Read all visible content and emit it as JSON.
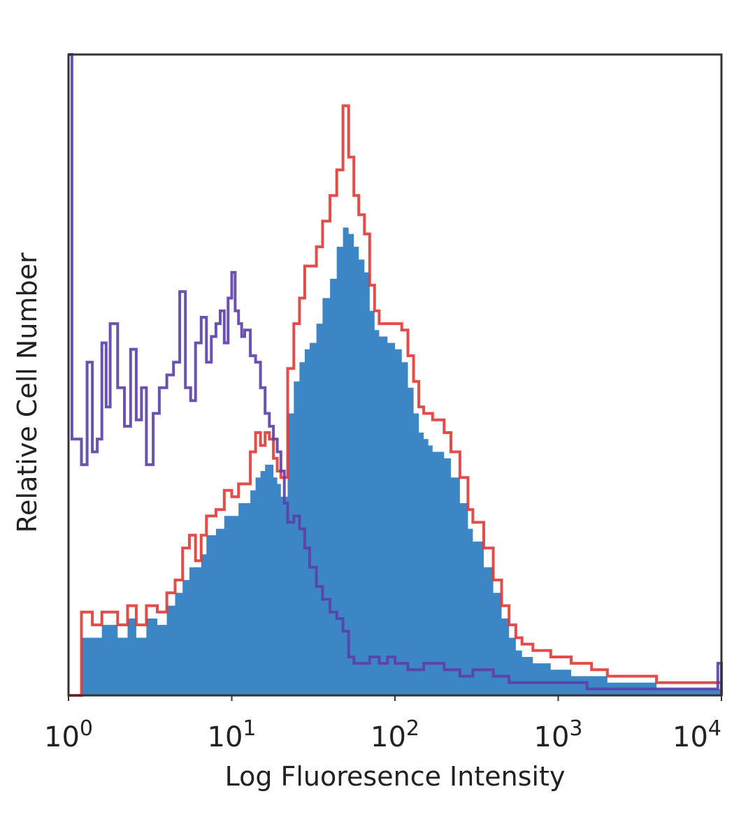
{
  "chart_data": {
    "type": "histogram",
    "xlabel": "Log Fluoresence Intensity",
    "ylabel": "Relative Cell Number",
    "x_scale": "log",
    "xlim": [
      1,
      10000
    ],
    "ylim": [
      0,
      100
    ],
    "grid": false,
    "legend": "none",
    "x_ticks": [
      {
        "value": 1,
        "base": "10",
        "exp": "0"
      },
      {
        "value": 10,
        "base": "10",
        "exp": "1"
      },
      {
        "value": 100,
        "base": "10",
        "exp": "2"
      },
      {
        "value": 1000,
        "base": "10",
        "exp": "3"
      },
      {
        "value": 10000,
        "base": "10",
        "exp": "4"
      }
    ],
    "series": [
      {
        "kind": "filled",
        "color": "#3d86c6",
        "x": [
          1.0,
          1.2,
          1.4,
          1.6,
          1.8,
          2.0,
          2.3,
          2.6,
          3.0,
          3.5,
          4.0,
          4.5,
          5.0,
          5.5,
          6.0,
          6.5,
          7.0,
          8.0,
          9.0,
          10.0,
          11.0,
          12.0,
          13.0,
          14.0,
          15.0,
          16.0,
          17.0,
          18.0,
          19.0,
          20.0,
          22.0,
          24.0,
          26.0,
          28.0,
          30.0,
          33.0,
          36.0,
          40.0,
          44.0,
          48.0,
          52.0,
          56.0,
          60.0,
          65.0,
          70.0,
          75.0,
          80.0,
          90.0,
          100.0,
          110.0,
          120.0,
          130.0,
          140.0,
          150.0,
          160.0,
          170.0,
          180.0,
          200.0,
          220.0,
          250.0,
          280.0,
          300.0,
          350.0,
          400.0,
          450.0,
          500.0,
          550.0,
          600.0,
          700.0,
          800.0,
          900.0,
          1000.0,
          1200.0,
          1400.0,
          1600.0,
          2000.0,
          2500.0,
          3000.0,
          4000.0,
          6000.0,
          8000.0,
          10000.0
        ],
        "y": [
          0,
          9,
          9,
          11,
          11,
          9,
          12,
          9,
          12,
          11,
          14,
          16,
          18,
          20,
          20,
          22,
          25,
          26,
          28,
          28,
          30,
          30,
          32,
          34,
          35,
          36,
          36,
          34,
          33,
          31,
          44,
          49,
          52,
          54,
          55,
          58,
          62,
          65,
          70,
          73,
          72,
          70,
          68,
          66,
          60,
          57,
          56,
          55,
          54,
          52,
          48,
          44,
          41,
          40,
          39,
          38,
          38,
          37,
          34,
          30,
          26,
          24,
          20,
          16,
          12,
          9,
          7,
          6,
          5,
          5,
          4,
          4,
          3,
          3,
          3,
          2,
          2,
          2,
          1,
          1,
          1,
          0
        ]
      },
      {
        "kind": "outline",
        "color": "#e03a35",
        "x": [
          1.0,
          1.2,
          1.4,
          1.6,
          1.8,
          2.0,
          2.3,
          2.6,
          3.0,
          3.5,
          4.0,
          4.5,
          5.0,
          5.5,
          6.0,
          6.5,
          7.0,
          8.0,
          9.0,
          10.0,
          11.0,
          12.0,
          13.0,
          14.0,
          15.0,
          16.0,
          17.0,
          18.0,
          19.0,
          20.0,
          22.0,
          24.0,
          26.0,
          28.0,
          30.0,
          33.0,
          36.0,
          40.0,
          44.0,
          48.0,
          52.0,
          56.0,
          60.0,
          65.0,
          70.0,
          75.0,
          80.0,
          90.0,
          100.0,
          110.0,
          120.0,
          130.0,
          140.0,
          150.0,
          160.0,
          170.0,
          180.0,
          200.0,
          220.0,
          250.0,
          280.0,
          300.0,
          350.0,
          400.0,
          450.0,
          500.0,
          550.0,
          600.0,
          700.0,
          800.0,
          900.0,
          1000.0,
          1200.0,
          1400.0,
          1600.0,
          2000.0,
          2500.0,
          3000.0,
          4000.0,
          6000.0,
          8000.0,
          10000.0
        ],
        "y": [
          0,
          13,
          11,
          13,
          13,
          11,
          14,
          11,
          14,
          13,
          16,
          18,
          23,
          25,
          21,
          25,
          28,
          29,
          32,
          31,
          33,
          33,
          38,
          41,
          39,
          41,
          40,
          37,
          35,
          34,
          51,
          58,
          62,
          67,
          67,
          70,
          74,
          78,
          82,
          92,
          84,
          78,
          75,
          72,
          64,
          60,
          58,
          58,
          58,
          57,
          53,
          49,
          45,
          44,
          44,
          43,
          43,
          41,
          38,
          34,
          29,
          27,
          23,
          18,
          14,
          11,
          9,
          8,
          7,
          7,
          6,
          6,
          5,
          5,
          4,
          3,
          3,
          3,
          2,
          2,
          2,
          0
        ]
      },
      {
        "kind": "outline",
        "color": "#5b3fa8",
        "x": [
          1.0,
          1.05,
          1.2,
          1.3,
          1.4,
          1.5,
          1.6,
          1.7,
          1.8,
          2.0,
          2.2,
          2.4,
          2.6,
          2.8,
          3.0,
          3.3,
          3.6,
          4.0,
          4.4,
          4.8,
          5.2,
          5.6,
          6.0,
          6.5,
          7.0,
          7.5,
          8.0,
          8.5,
          9.0,
          9.5,
          10.0,
          10.5,
          11.0,
          11.5,
          12.0,
          13.0,
          14.0,
          15.0,
          16.0,
          17.0,
          18.0,
          19.0,
          20.0,
          21.0,
          22.0,
          24.0,
          26.0,
          28.0,
          30.0,
          33.0,
          36.0,
          40.0,
          44.0,
          48.0,
          52.0,
          56.0,
          60.0,
          65.0,
          70.0,
          80.0,
          90.0,
          100.0,
          120.0,
          150.0,
          200.0,
          250.0,
          300.0,
          400.0,
          500.0,
          700.0,
          1000.0,
          1500.0,
          2000.0,
          3000.0,
          5000.0,
          8000.0,
          9500.0,
          10000.0
        ],
        "y": [
          100,
          40,
          36,
          52,
          38,
          40,
          55,
          45,
          58,
          48,
          42,
          54,
          43,
          48,
          36,
          44,
          48,
          50,
          52,
          63,
          48,
          46,
          55,
          59,
          52,
          56,
          58,
          60,
          55,
          62,
          66,
          60,
          58,
          56,
          57,
          53,
          52,
          48,
          44,
          42,
          40,
          38,
          35,
          30,
          27,
          28,
          26,
          23,
          20,
          17,
          15,
          13,
          12,
          10,
          6,
          5,
          5,
          5,
          6,
          5,
          6,
          5,
          4,
          5,
          4,
          3,
          4,
          3,
          2,
          2,
          2,
          1,
          1,
          1,
          1,
          1,
          5,
          0
        ]
      }
    ]
  }
}
